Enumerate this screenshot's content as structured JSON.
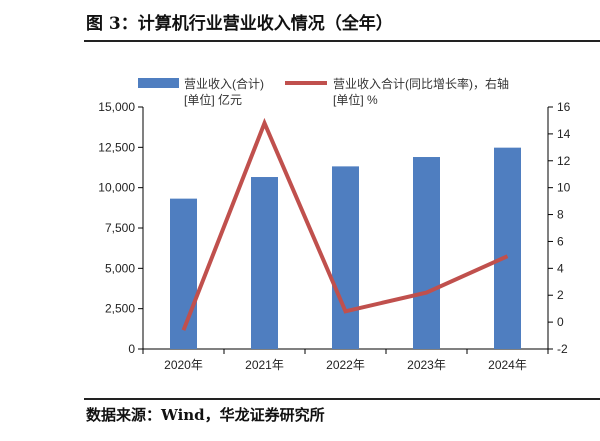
{
  "title": "图 3：计算机行业营业收入情况（全年）",
  "footer": "数据来源：Wind，华龙证券研究所",
  "chart_data": {
    "type": "bar+line",
    "categories": [
      "2020年",
      "2021年",
      "2022年",
      "2023年",
      "2024年"
    ],
    "series": [
      {
        "name": "营业收入(合计) [单位] 亿元",
        "type": "bar",
        "axis": "left",
        "color": "#4f7ec0",
        "values": [
          9320,
          10660,
          11320,
          11900,
          12480
        ]
      },
      {
        "name": "营业收入合计(同比增长率)，右轴 [单位] %",
        "type": "line",
        "axis": "right",
        "color": "#c0504d",
        "values": [
          -0.6,
          14.8,
          0.8,
          2.2,
          4.9
        ]
      }
    ],
    "legend": [
      {
        "line1": "营业收入(合计)",
        "line2": "[单位] 亿元"
      },
      {
        "line1": "营业收入合计(同比增长率)，右轴",
        "line2": "[单位] %"
      }
    ],
    "left_axis": {
      "ylim": [
        0,
        15000
      ],
      "ticks": [
        "0",
        "2,500",
        "5,000",
        "7,500",
        "10,000",
        "12,500",
        "15,000"
      ]
    },
    "right_axis": {
      "ylim": [
        -2,
        16
      ],
      "ticks": [
        "-2",
        "0",
        "2",
        "4",
        "6",
        "8",
        "10",
        "12",
        "14",
        "16"
      ]
    },
    "legend_position": "top"
  }
}
